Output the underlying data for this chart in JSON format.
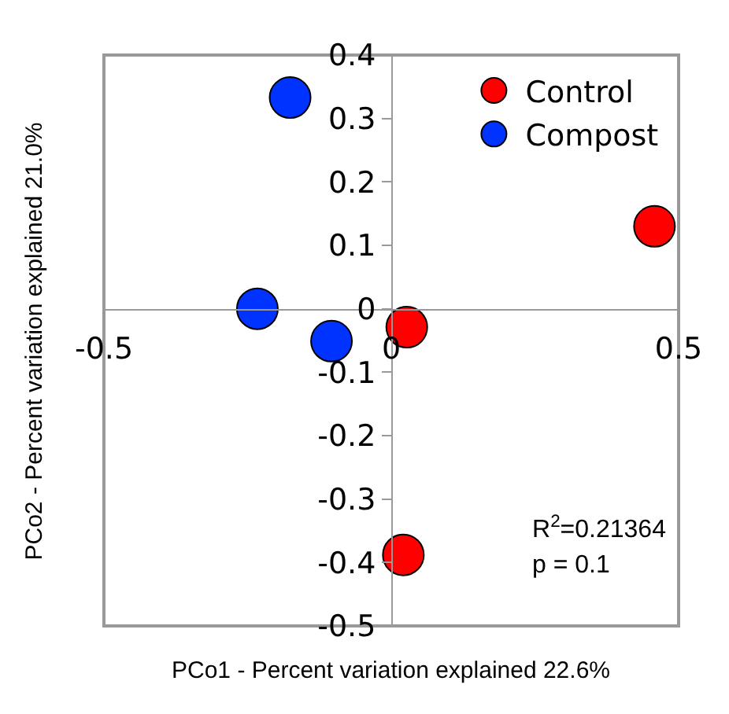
{
  "chart_data": {
    "type": "scatter",
    "xlabel": "PCo1 - Percent variation explained 22.6%",
    "ylabel": "PCo2 - Percent variation explained 21.0%",
    "series": [
      {
        "name": "Control",
        "color": "#ff0000",
        "x": [
          0.458,
          0.027,
          0.021
        ],
        "values": [
          0.13,
          -0.029,
          -0.388
        ]
      },
      {
        "name": "Compost",
        "color": "#0033ff",
        "x": [
          -0.176,
          -0.233,
          -0.104
        ],
        "values": [
          0.333,
          0,
          -0.051
        ]
      }
    ],
    "xlim": [
      -0.5,
      0.5
    ],
    "xticks": [
      -0.5,
      0,
      0.5
    ],
    "ylim": [
      -0.5,
      0.4
    ],
    "yticks": [
      -0.5,
      -0.4,
      -0.3,
      -0.2,
      -0.1,
      0,
      0.1,
      0.2,
      0.3,
      0.4
    ],
    "grid": false,
    "legend": "top right",
    "marker": "circle",
    "annotations": [
      "R$^{2}$=0.21364",
      "p = 0.1"
    ]
  }
}
